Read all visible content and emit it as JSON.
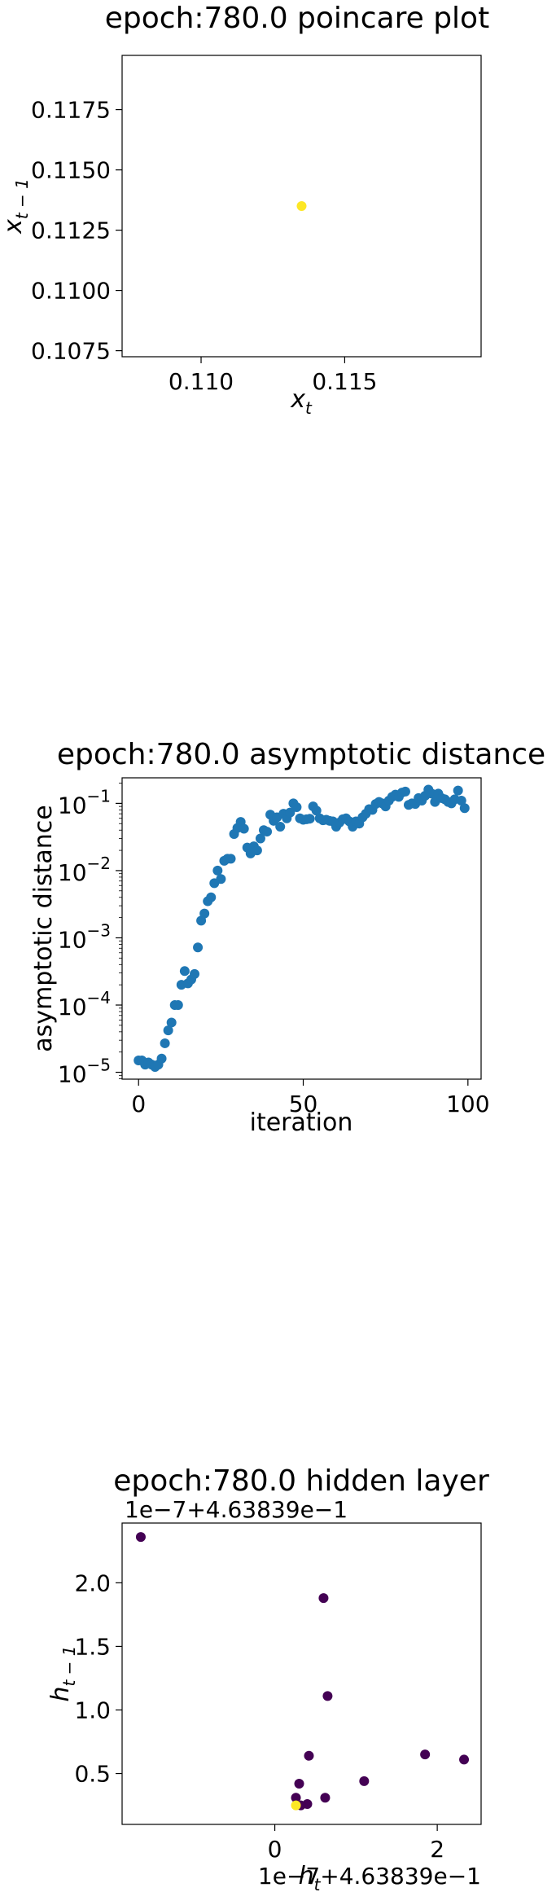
{
  "chart_data": [
    {
      "type": "scatter",
      "title": "epoch:780.0 poincare plot",
      "xlabel": {
        "base": "x",
        "sub": "t"
      },
      "ylabel": {
        "base": "x",
        "sub": "t − 1"
      },
      "xlim": [
        0.10725,
        0.11975
      ],
      "ylim": [
        0.10725,
        0.11975
      ],
      "xticks": [
        {
          "v": 0.11,
          "label": "0.110"
        },
        {
          "v": 0.115,
          "label": "0.115"
        }
      ],
      "yticks": [
        {
          "v": 0.1075,
          "label": "0.1075"
        },
        {
          "v": 0.11,
          "label": "0.1100"
        },
        {
          "v": 0.1125,
          "label": "0.1125"
        },
        {
          "v": 0.115,
          "label": "0.1150"
        },
        {
          "v": 0.1175,
          "label": "0.1175"
        }
      ],
      "point_color": "#fde725",
      "points": [
        {
          "x": 0.1135,
          "y": 0.1135
        }
      ]
    },
    {
      "type": "scatter",
      "title": "epoch:780.0 asymptotic distance",
      "xlabel": "iteration",
      "ylabel": "asymptotic distance",
      "yscale": "log",
      "xlim": [
        -5,
        104
      ],
      "ylim": [
        7.9e-06,
        0.24
      ],
      "xticks": [
        {
          "v": 0,
          "label": "0"
        },
        {
          "v": 50,
          "label": "50"
        },
        {
          "v": 100,
          "label": "100"
        }
      ],
      "yticks": [
        {
          "v": 1e-05,
          "base": "10",
          "exp": "−5"
        },
        {
          "v": 0.0001,
          "base": "10",
          "exp": "−4"
        },
        {
          "v": 0.001,
          "base": "10",
          "exp": "−3"
        },
        {
          "v": 0.01,
          "base": "10",
          "exp": "−2"
        },
        {
          "v": 0.1,
          "base": "10",
          "exp": "−1"
        }
      ],
      "point_color": "#1f77b4",
      "y": [
        1.5e-05,
        1.5e-05,
        1.3e-05,
        1.4e-05,
        1.3e-05,
        1.2e-05,
        1.3e-05,
        1.6e-05,
        2.7e-05,
        4.2e-05,
        5.5e-05,
        0.0001,
        0.0001,
        0.0002,
        0.00032,
        0.00021,
        0.00024,
        0.00029,
        0.00072,
        0.0018,
        0.0023,
        0.0035,
        0.004,
        0.0065,
        0.01,
        0.0075,
        0.014,
        0.015,
        0.015,
        0.035,
        0.043,
        0.053,
        0.042,
        0.022,
        0.018,
        0.023,
        0.02,
        0.03,
        0.04,
        0.038,
        0.068,
        0.055,
        0.062,
        0.045,
        0.07,
        0.06,
        0.073,
        0.1,
        0.088,
        0.06,
        0.057,
        0.058,
        0.059,
        0.09,
        0.078,
        0.06,
        0.056,
        0.057,
        0.055,
        0.054,
        0.045,
        0.052,
        0.058,
        0.06,
        0.054,
        0.045,
        0.054,
        0.05,
        0.062,
        0.07,
        0.082,
        0.08,
        0.098,
        0.105,
        0.1,
        0.09,
        0.11,
        0.125,
        0.135,
        0.125,
        0.145,
        0.15,
        0.095,
        0.1,
        0.098,
        0.12,
        0.11,
        0.13,
        0.16,
        0.14,
        0.105,
        0.14,
        0.12,
        0.115,
        0.105,
        0.1,
        0.115,
        0.155,
        0.11,
        0.085
      ]
    },
    {
      "type": "scatter",
      "title": "epoch:780.0 hidden layer",
      "xlabel": {
        "base": "h",
        "sub": "t"
      },
      "ylabel": {
        "base": "h",
        "sub": "t − 1"
      },
      "x_offset": "1e−7+4.63839e−1",
      "y_offset": "1e−7+4.63839e−1",
      "xlim": [
        -1.88,
        2.54
      ],
      "ylim": [
        0.1,
        2.47
      ],
      "xticks": [
        {
          "v": 0,
          "label": "0"
        },
        {
          "v": 2,
          "label": "2"
        }
      ],
      "yticks": [
        {
          "v": 0.5,
          "label": "0.5"
        },
        {
          "v": 1.0,
          "label": "1.0"
        },
        {
          "v": 1.5,
          "label": "1.5"
        },
        {
          "v": 2.0,
          "label": "2.0"
        }
      ],
      "colormap": [
        "#440154",
        "#fde725"
      ],
      "points": [
        {
          "x": -1.65,
          "y": 2.36,
          "c": 0
        },
        {
          "x": 0.6,
          "y": 1.88,
          "c": 0
        },
        {
          "x": 0.65,
          "y": 1.11,
          "c": 0
        },
        {
          "x": 0.42,
          "y": 0.64,
          "c": 0
        },
        {
          "x": 1.85,
          "y": 0.65,
          "c": 0
        },
        {
          "x": 2.33,
          "y": 0.61,
          "c": 0
        },
        {
          "x": 1.1,
          "y": 0.44,
          "c": 0
        },
        {
          "x": 0.3,
          "y": 0.42,
          "c": 0
        },
        {
          "x": 0.62,
          "y": 0.31,
          "c": 0
        },
        {
          "x": 0.26,
          "y": 0.31,
          "c": 0
        },
        {
          "x": 0.4,
          "y": 0.26,
          "c": 0
        },
        {
          "x": 0.32,
          "y": 0.25,
          "c": 0
        },
        {
          "x": 0.26,
          "y": 0.25,
          "c": 1
        }
      ]
    }
  ]
}
